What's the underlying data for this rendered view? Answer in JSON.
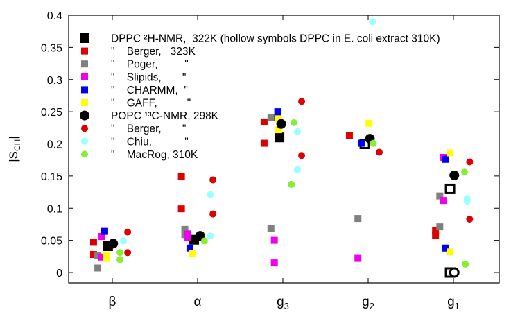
{
  "chart_data": {
    "type": "scatter",
    "ylabel_main": "|S",
    "ylabel_sub": "CH",
    "ylabel_close": "|",
    "ylim": [
      0,
      0.4
    ],
    "yticks": [
      0,
      0.05,
      0.1,
      0.15,
      0.2,
      0.25,
      0.3,
      0.35,
      0.4
    ],
    "ytick_labels": [
      "0",
      "0.05",
      "0.1",
      "0.15",
      "0.2",
      "0.25",
      "0.3",
      "0.35",
      "0.4"
    ],
    "grid": false,
    "legend_position": "top-left",
    "categories": [
      {
        "id": "beta",
        "label": "β",
        "sub": ""
      },
      {
        "id": "alpha",
        "label": "α",
        "sub": ""
      },
      {
        "id": "g3",
        "label": "g",
        "sub": "3"
      },
      {
        "id": "g2",
        "label": "g",
        "sub": "2"
      },
      {
        "id": "g1",
        "label": "g",
        "sub": "1"
      }
    ],
    "legend": [
      {
        "marker": "square",
        "color": "#000000",
        "size": "big",
        "text": "DPPC ²H-NMR,  322K (hollow symbols DPPC in E. coli extract 310K)"
      },
      {
        "marker": "square",
        "color": "#dd0000",
        "size": "small",
        "text": "\"    Berger,   323K"
      },
      {
        "marker": "square",
        "color": "#808080",
        "size": "small",
        "text": "\"    Poger,         \""
      },
      {
        "marker": "square",
        "color": "#ee00ee",
        "size": "small",
        "text": "\"    Slipids,       \""
      },
      {
        "marker": "square",
        "color": "#0000ee",
        "size": "small",
        "text": "\"    CHARMM,  \""
      },
      {
        "marker": "square",
        "color": "#ffff00",
        "size": "small",
        "text": "\"    GAFF,          \""
      },
      {
        "marker": "circle",
        "color": "#000000",
        "size": "big",
        "text": "POPC ¹³C-NMR, 298K"
      },
      {
        "marker": "circle",
        "color": "#dd0000",
        "size": "small",
        "text": "\"    Berger,       \""
      },
      {
        "marker": "circle",
        "color": "#99ffff",
        "size": "small",
        "text": "\"    Chiu,           \""
      },
      {
        "marker": "circle",
        "color": "#88ee33",
        "size": "small",
        "text": "\"    MacRog, 310K"
      }
    ],
    "series": [
      {
        "name": "DPPC ²H-NMR, 322K",
        "marker": "square",
        "color": "#000000",
        "size": "big",
        "points": [
          {
            "x": "beta",
            "dx": -0.05,
            "y": 0.041
          },
          {
            "x": "alpha",
            "dx": -0.04,
            "y": 0.051
          },
          {
            "x": "g3",
            "dx": -0.04,
            "y": 0.21
          }
        ]
      },
      {
        "name": "DPPC in E. coli extract 310K",
        "marker": "square",
        "color": "#000000",
        "size": "big",
        "hollow": true,
        "points": [
          {
            "x": "g2",
            "dx": -0.04,
            "y": 0.2
          },
          {
            "x": "g1",
            "dx": -0.04,
            "y": 0.13
          },
          {
            "x": "g1",
            "dx": -0.04,
            "y": 0.0
          }
        ]
      },
      {
        "name": "Berger 323K",
        "marker": "square",
        "color": "#dd0000",
        "size": "small",
        "points": [
          {
            "x": "beta",
            "dx": -0.22,
            "y": 0.047
          },
          {
            "x": "beta",
            "dx": -0.22,
            "y": 0.028
          },
          {
            "x": "alpha",
            "dx": -0.19,
            "y": 0.149
          },
          {
            "x": "alpha",
            "dx": -0.19,
            "y": 0.099
          },
          {
            "x": "g3",
            "dx": -0.22,
            "y": 0.234
          },
          {
            "x": "g3",
            "dx": -0.22,
            "y": 0.201
          },
          {
            "x": "g2",
            "dx": -0.22,
            "y": 0.213
          },
          {
            "x": "g1",
            "dx": -0.21,
            "y": 0.065
          },
          {
            "x": "g1",
            "dx": -0.21,
            "y": 0.058
          }
        ]
      },
      {
        "name": "Poger",
        "marker": "square",
        "color": "#808080",
        "size": "small",
        "points": [
          {
            "x": "beta",
            "dx": -0.17,
            "y": 0.027
          },
          {
            "x": "beta",
            "dx": -0.17,
            "y": 0.007
          },
          {
            "x": "alpha",
            "dx": -0.15,
            "y": 0.067
          },
          {
            "x": "alpha",
            "dx": -0.15,
            "y": 0.059
          },
          {
            "x": "g3",
            "dx": -0.14,
            "y": 0.241
          },
          {
            "x": "g3",
            "dx": -0.14,
            "y": 0.069
          },
          {
            "x": "g2",
            "dx": -0.12,
            "y": 0.084
          },
          {
            "x": "g1",
            "dx": -0.16,
            "y": 0.119
          },
          {
            "x": "g1",
            "dx": -0.16,
            "y": 0.071
          }
        ]
      },
      {
        "name": "Slipids",
        "marker": "square",
        "color": "#ee00ee",
        "size": "small",
        "points": [
          {
            "x": "beta",
            "dx": -0.13,
            "y": 0.056
          },
          {
            "x": "beta",
            "dx": -0.13,
            "y": 0.024
          },
          {
            "x": "alpha",
            "dx": -0.12,
            "y": 0.06
          },
          {
            "x": "alpha",
            "dx": -0.12,
            "y": 0.055
          },
          {
            "x": "g3",
            "dx": -0.1,
            "y": 0.05
          },
          {
            "x": "g3",
            "dx": -0.1,
            "y": 0.015
          },
          {
            "x": "g2",
            "dx": -0.12,
            "y": 0.022
          },
          {
            "x": "g1",
            "dx": -0.12,
            "y": 0.179
          },
          {
            "x": "g1",
            "dx": -0.12,
            "y": 0.112
          }
        ]
      },
      {
        "name": "CHARMM",
        "marker": "square",
        "color": "#0000ee",
        "size": "small",
        "points": [
          {
            "x": "beta",
            "dx": -0.09,
            "y": 0.064
          },
          {
            "x": "alpha",
            "dx": -0.09,
            "y": 0.038
          },
          {
            "x": "g3",
            "dx": -0.06,
            "y": 0.25
          },
          {
            "x": "g3",
            "dx": -0.06,
            "y": 0.241
          },
          {
            "x": "g2",
            "dx": -0.08,
            "y": 0.201
          },
          {
            "x": "g1",
            "dx": -0.09,
            "y": 0.176
          },
          {
            "x": "g1",
            "dx": -0.09,
            "y": 0.038
          }
        ]
      },
      {
        "name": "GAFF",
        "marker": "square",
        "color": "#ffff00",
        "size": "small",
        "points": [
          {
            "x": "beta",
            "dx": -0.07,
            "y": 0.027
          },
          {
            "x": "beta",
            "dx": -0.07,
            "y": 0.022
          },
          {
            "x": "alpha",
            "dx": -0.06,
            "y": 0.03
          },
          {
            "x": "g3",
            "dx": -0.05,
            "y": 0.239
          },
          {
            "x": "g3",
            "dx": -0.05,
            "y": 0.222
          },
          {
            "x": "g2",
            "dx": 0.01,
            "y": 0.232
          },
          {
            "x": "g1",
            "dx": -0.04,
            "y": 0.186
          },
          {
            "x": "g1",
            "dx": -0.04,
            "y": 0.032
          }
        ]
      },
      {
        "name": "POPC ¹³C-NMR, 298K",
        "marker": "circle",
        "color": "#000000",
        "size": "big",
        "points": [
          {
            "x": "beta",
            "dx": 0.01,
            "y": 0.045
          },
          {
            "x": "alpha",
            "dx": 0.03,
            "y": 0.057
          },
          {
            "x": "g3",
            "dx": -0.02,
            "y": 0.231
          },
          {
            "x": "g2",
            "dx": 0.02,
            "y": 0.208
          },
          {
            "x": "g1",
            "dx": 0.01,
            "y": 0.151
          }
        ]
      },
      {
        "name": "POPC in E. coli extract 310K",
        "marker": "circle",
        "color": "#000000",
        "size": "big",
        "hollow": true,
        "points": [
          {
            "x": "g1",
            "dx": 0.01,
            "y": 0.0
          }
        ]
      },
      {
        "name": "Berger (POPC)",
        "marker": "circle",
        "color": "#dd0000",
        "size": "small",
        "points": [
          {
            "x": "beta",
            "dx": 0.18,
            "y": 0.063
          },
          {
            "x": "beta",
            "dx": 0.18,
            "y": 0.031
          },
          {
            "x": "alpha",
            "dx": 0.18,
            "y": 0.144
          },
          {
            "x": "alpha",
            "dx": 0.18,
            "y": 0.091
          },
          {
            "x": "g3",
            "dx": 0.22,
            "y": 0.266
          },
          {
            "x": "g3",
            "dx": 0.22,
            "y": 0.182
          },
          {
            "x": "g2",
            "dx": 0.13,
            "y": 0.187
          },
          {
            "x": "g1",
            "dx": 0.19,
            "y": 0.172
          },
          {
            "x": "g1",
            "dx": 0.19,
            "y": 0.083
          }
        ]
      },
      {
        "name": "Chiu",
        "marker": "circle",
        "color": "#99ffff",
        "size": "small",
        "points": [
          {
            "x": "beta",
            "dx": 0.13,
            "y": 0.049
          },
          {
            "x": "alpha",
            "dx": 0.15,
            "y": 0.121
          },
          {
            "x": "alpha",
            "dx": 0.15,
            "y": 0.057
          },
          {
            "x": "g3",
            "dx": 0.17,
            "y": 0.219
          },
          {
            "x": "g3",
            "dx": 0.17,
            "y": 0.16
          },
          {
            "x": "g2",
            "dx": 0.05,
            "y": 0.39
          },
          {
            "x": "g1",
            "dx": 0.16,
            "y": 0.115
          },
          {
            "x": "g1",
            "dx": 0.16,
            "y": 0.111
          }
        ]
      },
      {
        "name": "MacRog 310K",
        "marker": "circle",
        "color": "#88ee33",
        "size": "small",
        "points": [
          {
            "x": "beta",
            "dx": 0.09,
            "y": 0.031
          },
          {
            "x": "beta",
            "dx": 0.09,
            "y": 0.02
          },
          {
            "x": "alpha",
            "dx": 0.08,
            "y": 0.049
          },
          {
            "x": "g3",
            "dx": 0.13,
            "y": 0.233
          },
          {
            "x": "g3",
            "dx": 0.1,
            "y": 0.137
          },
          {
            "x": "g2",
            "dx": 0.06,
            "y": 0.201
          },
          {
            "x": "g1",
            "dx": 0.13,
            "y": 0.156
          },
          {
            "x": "g1",
            "dx": 0.14,
            "y": 0.013
          }
        ]
      }
    ]
  }
}
